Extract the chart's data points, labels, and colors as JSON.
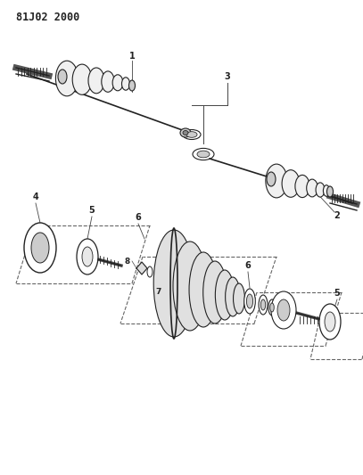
{
  "title": "81J02 2000",
  "bg_color": "#ffffff",
  "line_color": "#222222",
  "fig_width": 4.07,
  "fig_height": 5.33,
  "title_fontsize": 8.5,
  "label_fontsize": 7
}
